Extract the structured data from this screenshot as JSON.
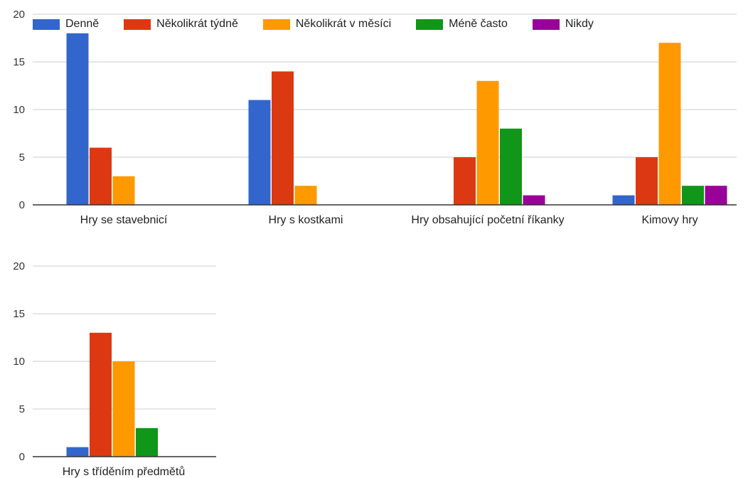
{
  "legend": {
    "items": [
      {
        "label": "Denně",
        "color": "#3366cc"
      },
      {
        "label": "Několikrát týdně",
        "color": "#dc3912"
      },
      {
        "label": "Několikrát v měsíci",
        "color": "#ff9900"
      },
      {
        "label": "Méně často",
        "color": "#109618"
      },
      {
        "label": "Nikdy",
        "color": "#990099"
      }
    ]
  },
  "chart_data": [
    {
      "type": "bar",
      "categories": [
        "Hry se stavebnicí",
        "Hry s kostkami",
        "Hry obsahující početní říkanky",
        "Kimovy hry"
      ],
      "series": [
        {
          "name": "Denně",
          "values": [
            18,
            11,
            0,
            1
          ]
        },
        {
          "name": "Několikrát týdně",
          "values": [
            6,
            14,
            5,
            5
          ]
        },
        {
          "name": "Několikrát v měsíci",
          "values": [
            3,
            2,
            13,
            17
          ]
        },
        {
          "name": "Méně často",
          "values": [
            0,
            0,
            8,
            2
          ]
        },
        {
          "name": "Nikdy",
          "values": [
            0,
            0,
            1,
            2
          ]
        }
      ],
      "ylim": [
        0,
        20
      ],
      "yticks": [
        0,
        5,
        10,
        15,
        20
      ],
      "grid": true,
      "legend_position": "top"
    },
    {
      "type": "bar",
      "categories": [
        "Hry s tříděním předmětů"
      ],
      "series": [
        {
          "name": "Denně",
          "values": [
            1
          ]
        },
        {
          "name": "Několikrát týdně",
          "values": [
            13
          ]
        },
        {
          "name": "Několikrát v měsíci",
          "values": [
            10
          ]
        },
        {
          "name": "Méně často",
          "values": [
            3
          ]
        },
        {
          "name": "Nikdy",
          "values": [
            0
          ]
        }
      ],
      "ylim": [
        0,
        20
      ],
      "yticks": [
        0,
        5,
        10,
        15,
        20
      ],
      "grid": true
    }
  ]
}
